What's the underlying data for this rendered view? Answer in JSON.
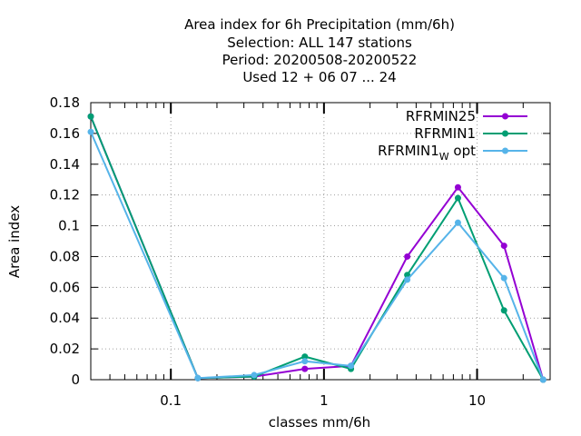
{
  "chart_data": {
    "type": "line",
    "title_lines": [
      "Area index  for 6h Precipitation (mm/6h)",
      "Selection: ALL    147 stations",
      "Period: 20200508-20200522",
      "Used  12 + 06 07 ... 24"
    ],
    "xlabel": "classes mm/6h",
    "ylabel": "Area index",
    "x_scale": "log",
    "xlim": [
      0.03,
      30
    ],
    "ylim": [
      0,
      0.18
    ],
    "x_ticks": [
      {
        "value": 0.1,
        "label": "0.1"
      },
      {
        "value": 1,
        "label": "1"
      },
      {
        "value": 10,
        "label": "10"
      }
    ],
    "y_ticks": [
      {
        "value": 0,
        "label": "0"
      },
      {
        "value": 0.02,
        "label": "0.02"
      },
      {
        "value": 0.04,
        "label": "0.04"
      },
      {
        "value": 0.06,
        "label": "0.06"
      },
      {
        "value": 0.08,
        "label": "0.08"
      },
      {
        "value": 0.1,
        "label": "0.1"
      },
      {
        "value": 0.12,
        "label": "0.12"
      },
      {
        "value": 0.14,
        "label": "0.14"
      },
      {
        "value": 0.16,
        "label": "0.16"
      },
      {
        "value": 0.18,
        "label": "0.18"
      }
    ],
    "grid": true,
    "legend_position": "top-right",
    "x": [
      0.03,
      0.15,
      0.35,
      0.75,
      1.5,
      3.5,
      7.5,
      15,
      27
    ],
    "series": [
      {
        "name": "RFRMIN25",
        "label_main": "RFRMIN25",
        "label_sub": "",
        "label_tail": "",
        "color": "#9400d3",
        "values": [
          0.171,
          0.001,
          0.002,
          0.007,
          0.009,
          0.08,
          0.125,
          0.087,
          0.0
        ]
      },
      {
        "name": "RFRMIN1",
        "label_main": "RFRMIN1",
        "label_sub": "",
        "label_tail": "",
        "color": "#009e73",
        "values": [
          0.171,
          0.001,
          0.002,
          0.015,
          0.007,
          0.068,
          0.118,
          0.045,
          0.0
        ]
      },
      {
        "name": "RFRMIN1W opt",
        "label_main": "RFRMIN1",
        "label_sub": "W",
        "label_tail": "opt",
        "color": "#56b4e9",
        "values": [
          0.161,
          0.001,
          0.003,
          0.012,
          0.009,
          0.065,
          0.102,
          0.066,
          0.0
        ]
      }
    ]
  }
}
